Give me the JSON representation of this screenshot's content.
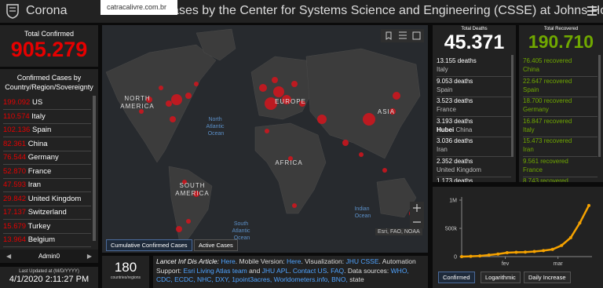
{
  "header": {
    "title_left": "Corona",
    "title_right": "Cases by the Center for Systems Science and Engineering (CSSE) at Johns Hop…",
    "url_tooltip": "catracalivre.com.br"
  },
  "total_confirmed": {
    "label": "Total Confirmed",
    "value": "905.279"
  },
  "country_list": {
    "title": "Confirmed Cases by Country/Region/Sovereignty",
    "rows": [
      {
        "count": "199.092",
        "name": "US"
      },
      {
        "count": "110.574",
        "name": "Italy"
      },
      {
        "count": "102.136",
        "name": "Spain"
      },
      {
        "count": "82.361",
        "name": "China"
      },
      {
        "count": "76.544",
        "name": "Germany"
      },
      {
        "count": "52.870",
        "name": "France"
      },
      {
        "count": "47.593",
        "name": "Iran"
      },
      {
        "count": "29.842",
        "name": "United Kingdom"
      },
      {
        "count": "17.137",
        "name": "Switzerland"
      },
      {
        "count": "15.679",
        "name": "Turkey"
      },
      {
        "count": "13.964",
        "name": "Belgium"
      }
    ],
    "footer": "Admin0"
  },
  "last_updated": {
    "label": "Last Updated at (M/D/YYYY)",
    "value": "4/1/2020 2:11:27 PM"
  },
  "map": {
    "labels": [
      "NORTH",
      "AMERICA",
      "EUROPE",
      "ASIA",
      "AFRICA",
      "SOUTH",
      "AMERICA",
      "North Atlantic Ocean",
      "South Atlantic Ocean",
      "Indian Ocean"
    ],
    "attribution": "Esri, FAO, NOAA",
    "tabs": [
      "Cumulative Confirmed Cases",
      "Active Cases"
    ]
  },
  "countries_count": {
    "value": "180",
    "label": "countries/regions"
  },
  "info": [
    {
      "text": "Lancet Inf Dis Article: ",
      "style": "italic"
    },
    {
      "text": "Here",
      "style": "link"
    },
    {
      "text": ". Mobile Version: ",
      "style": "plain"
    },
    {
      "text": "Here",
      "style": "link"
    },
    {
      "text": ". Visualization: ",
      "style": "plain"
    },
    {
      "text": "JHU CSSE",
      "style": "link"
    },
    {
      "text": ". Automation Support: ",
      "style": "plain"
    },
    {
      "text": "Esri Living Atlas team",
      "style": "link"
    },
    {
      "text": " and ",
      "style": "plain"
    },
    {
      "text": "JHU APL",
      "style": "link"
    },
    {
      "text": ". ",
      "style": "plain"
    },
    {
      "text": "Contact US",
      "style": "link"
    },
    {
      "text": ". ",
      "style": "plain"
    },
    {
      "text": "FAQ",
      "style": "link"
    },
    {
      "text": ". Data sources: ",
      "style": "plain"
    },
    {
      "text": "WHO, CDC, ECDC, NHC, DXY, 1point3acres, Worldometers.info, BNO,",
      "style": "link"
    },
    {
      "text": " state",
      "style": "plain"
    }
  ],
  "deaths": {
    "label": "Total Deaths",
    "value": "45.371",
    "rows": [
      {
        "count": "13.155 deaths",
        "place": "Italy"
      },
      {
        "count": "9.053 deaths",
        "place": "Spain"
      },
      {
        "count": "3.523 deaths",
        "place": "France"
      },
      {
        "count": "3.193 deaths",
        "region": "Hubei",
        "place": "China"
      },
      {
        "count": "3.036 deaths",
        "place": "Iran"
      },
      {
        "count": "2.352 deaths",
        "place": "United Kingdom"
      },
      {
        "count": "1.173 deaths"
      }
    ]
  },
  "recovered": {
    "label": "Total Recovered",
    "value": "190.710",
    "rows": [
      {
        "count": "76.405 recovered",
        "place": "China"
      },
      {
        "count": "22.647 recovered",
        "place": "Spain"
      },
      {
        "count": "18.700 recovered",
        "place": "Germany"
      },
      {
        "count": "16.847 recovered",
        "place": "Italy"
      },
      {
        "count": "15.473 recovered",
        "place": "Iran"
      },
      {
        "count": "9.561 recovered",
        "place": "France"
      },
      {
        "count": "8.743 recovered"
      }
    ]
  },
  "chart_data": {
    "type": "line",
    "x": [
      0,
      5,
      10,
      15,
      20,
      25,
      30,
      35,
      40,
      45,
      50,
      55,
      60,
      65,
      70
    ],
    "series": [
      {
        "color": "#f5a200",
        "values": [
          555,
          6000,
          12000,
          28000,
          45000,
          70000,
          77000,
          80000,
          90000,
          106000,
          128000,
          198000,
          335000,
          595000,
          905000
        ]
      }
    ],
    "xlim": [
      0,
      70
    ],
    "xticks": [
      {
        "value": 24,
        "label": "fev"
      },
      {
        "value": 53,
        "label": "mar"
      }
    ],
    "ylim": [
      0,
      1000000
    ],
    "yticks": [
      0,
      {
        "value": 500000,
        "label": "500k"
      },
      {
        "value": 1000000,
        "label": "1M"
      }
    ],
    "tabs": [
      "Confirmed",
      "Logarithmic",
      "Daily Increase"
    ]
  }
}
